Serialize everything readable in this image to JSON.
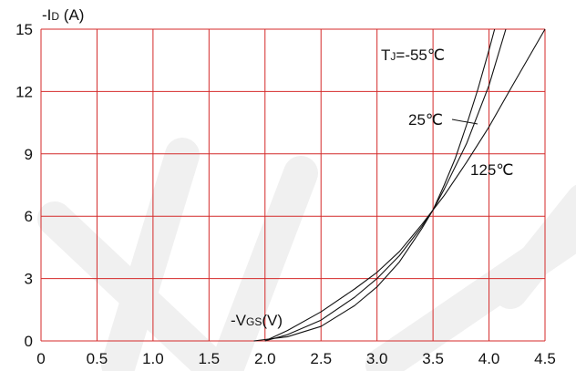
{
  "chart_data": {
    "type": "line",
    "y_axis_title": {
      "prefix": "-I",
      "sub": "D",
      "suffix": " (A)"
    },
    "x_axis_title": {
      "prefix": "-V",
      "sub": "GS",
      "suffix": "(V)"
    },
    "xlim": [
      0,
      4.5
    ],
    "ylim": [
      0,
      15
    ],
    "x_ticks": [
      0,
      0.5,
      1.0,
      1.5,
      2.0,
      2.5,
      3.0,
      3.5,
      4.0,
      4.5
    ],
    "x_tick_labels": [
      "0",
      "0.5",
      "1.0",
      "1.5",
      "2.0",
      "2.5",
      "3.0",
      "3.5",
      "4.0",
      "4.5"
    ],
    "y_ticks": [
      0,
      3,
      6,
      9,
      12,
      15
    ],
    "y_tick_labels": [
      "0",
      "3",
      "6",
      "9",
      "12",
      "15"
    ],
    "grid": true,
    "colors": {
      "grid": "#d42a2a",
      "line": "#111111",
      "text": "#111111",
      "watermark": "#f0f0f0"
    },
    "series": [
      {
        "name": "T_J=-55℃",
        "label": {
          "prefix": "T",
          "sub": "J",
          "suffix": "=-55℃"
        },
        "x": [
          1.9,
          2.2,
          2.5,
          2.8,
          3.0,
          3.2,
          3.4,
          3.5,
          3.6,
          3.7,
          3.8,
          3.9,
          4.0,
          4.05
        ],
        "y": [
          0.0,
          0.2,
          0.7,
          1.7,
          2.6,
          3.8,
          5.4,
          6.3,
          7.5,
          8.8,
          10.4,
          12.1,
          14.0,
          15.0
        ]
      },
      {
        "name": "25℃",
        "label": {
          "prefix": "",
          "sub": "",
          "suffix": "25℃"
        },
        "x": [
          2.0,
          2.2,
          2.5,
          2.8,
          3.0,
          3.2,
          3.4,
          3.5,
          3.6,
          3.8,
          4.0,
          4.15
        ],
        "y": [
          0.0,
          0.3,
          1.0,
          2.1,
          3.0,
          4.1,
          5.5,
          6.3,
          7.3,
          9.5,
          12.3,
          15.0
        ]
      },
      {
        "name": "125℃",
        "label": {
          "prefix": "",
          "sub": "",
          "suffix": "125℃"
        },
        "x": [
          2.0,
          2.2,
          2.5,
          2.8,
          3.0,
          3.2,
          3.4,
          3.5,
          3.6,
          3.8,
          4.0,
          4.2,
          4.5
        ],
        "y": [
          0.0,
          0.5,
          1.4,
          2.5,
          3.3,
          4.3,
          5.6,
          6.3,
          7.0,
          8.6,
          10.3,
          12.2,
          15.0
        ]
      }
    ]
  }
}
